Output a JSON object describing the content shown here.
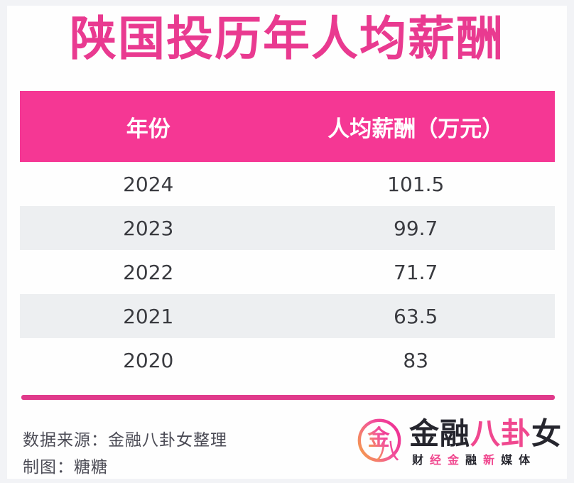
{
  "page": {
    "title": "陕国投历年人均薪酬"
  },
  "table": {
    "columns": [
      "年份",
      "人均薪酬（万元）"
    ],
    "rows": [
      {
        "year": "2024",
        "salary": "101.5"
      },
      {
        "year": "2023",
        "salary": "99.7"
      },
      {
        "year": "2022",
        "salary": "71.7"
      },
      {
        "year": "2021",
        "salary": "63.5"
      },
      {
        "year": "2020",
        "salary": "83"
      }
    ]
  },
  "chart_data": {
    "type": "table",
    "title": "陕国投历年人均薪酬",
    "columns": [
      "年份",
      "人均薪酬（万元）"
    ],
    "categories": [
      "2024",
      "2023",
      "2022",
      "2021",
      "2020"
    ],
    "values": [
      101.5,
      99.7,
      71.7,
      63.5,
      83
    ],
    "unit": "万元"
  },
  "footer": {
    "source": "数据来源：金融八卦女整理",
    "credit": "制图：糖糖"
  },
  "logo": {
    "mark_chars": [
      "金",
      "八"
    ],
    "name_segments": [
      {
        "text": "金融",
        "color": "#26262e"
      },
      {
        "text": "八卦",
        "color": "#f0488f"
      },
      {
        "text": "女",
        "color": "#26262e"
      }
    ],
    "subtitle_chars": [
      {
        "ch": "财",
        "color": "#26262e"
      },
      {
        "ch": "经",
        "color": "#f0488f"
      },
      {
        "ch": "金",
        "color": "#f0488f"
      },
      {
        "ch": "融",
        "color": "#26262e"
      },
      {
        "ch": "新",
        "color": "#f0488f"
      },
      {
        "ch": "媒",
        "color": "#26262e"
      },
      {
        "ch": "体",
        "color": "#26262e"
      }
    ]
  },
  "colors": {
    "title_pink": "#e93a90",
    "header_pink": "#f53794",
    "row_alt_gray": "#edeff1",
    "divider_pink": "#e03a8b",
    "logo_pink": "#f0488f",
    "logo_orange": "#f59a4e",
    "text_dark": "#3a3b40"
  }
}
